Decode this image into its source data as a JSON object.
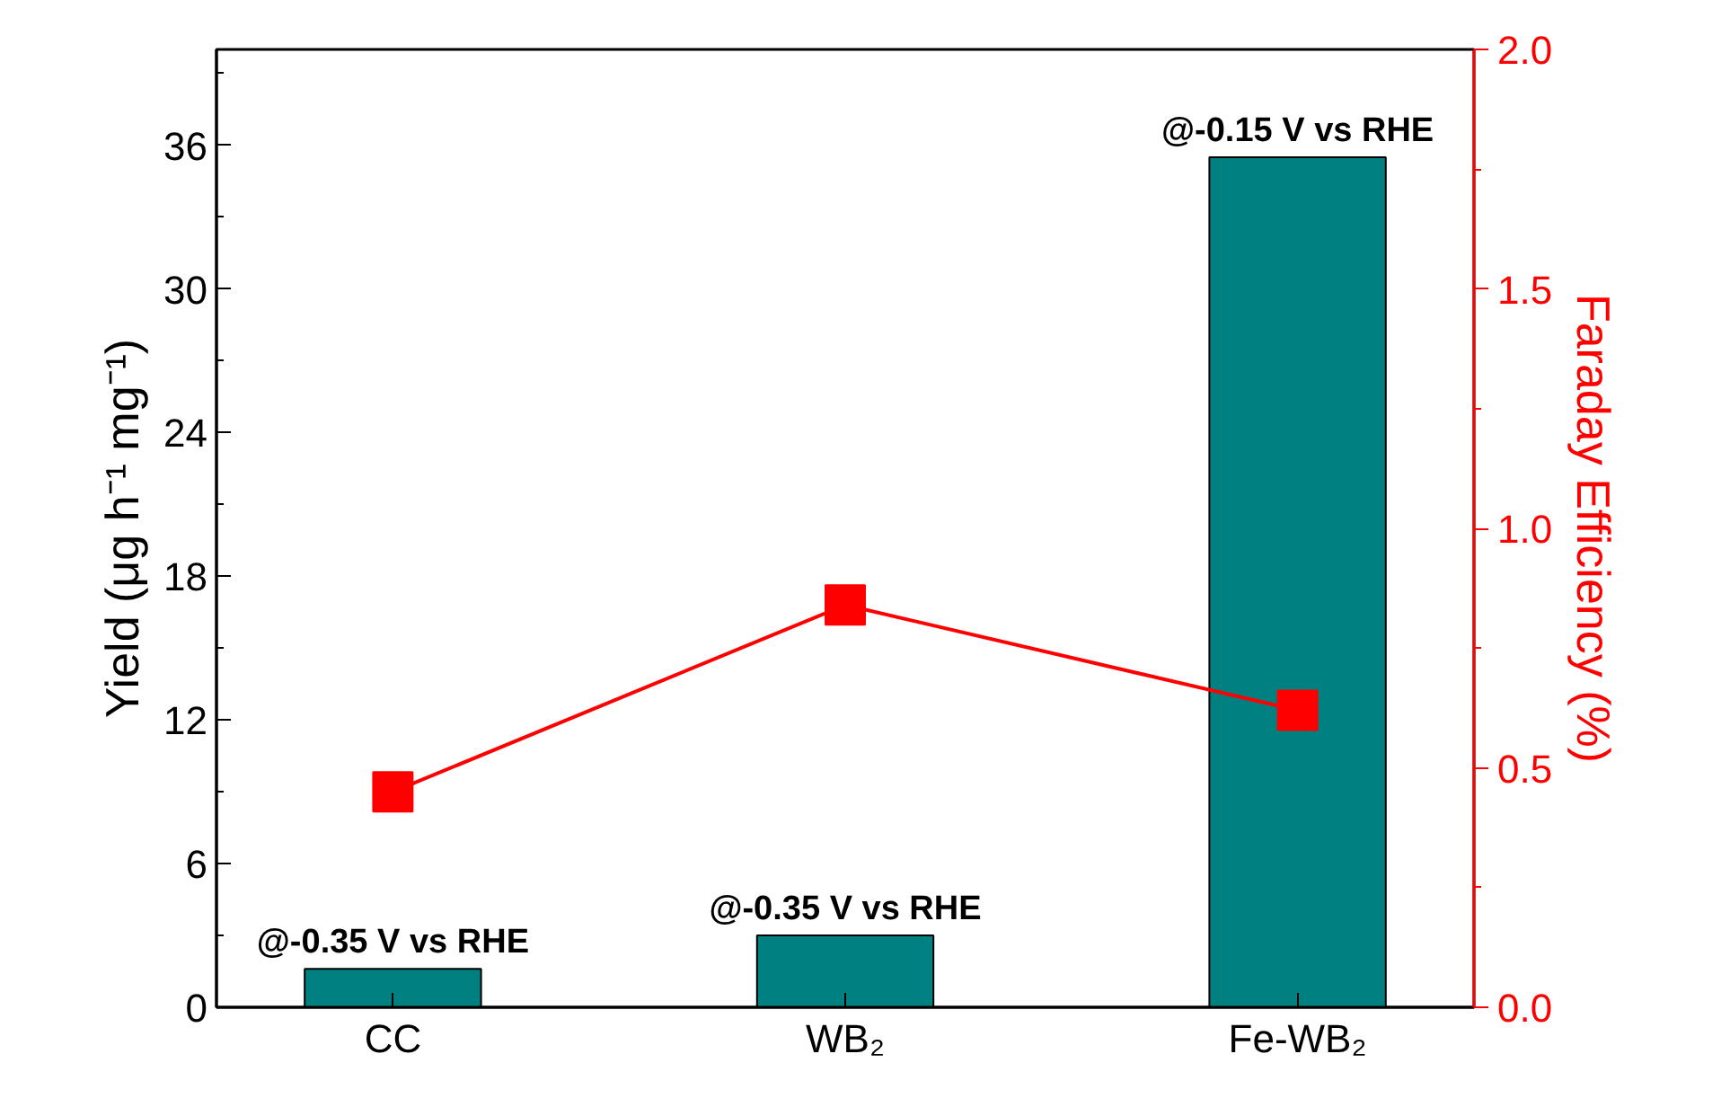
{
  "chart_data": {
    "type": "bar",
    "categories": [
      "CC",
      "WB₂",
      "Fe-WB₂"
    ],
    "ylabel": "Yield (μg h⁻¹ mg⁻¹)",
    "y2label": "Faraday Efficiency (%)",
    "series": [
      {
        "color": "#008080",
        "values": [
          1.6,
          3.0,
          35.5
        ]
      },
      {
        "type": "line",
        "axis": "y2",
        "color": "#ff0000",
        "values": [
          0.45,
          0.84,
          0.62
        ],
        "marker": "square",
        "line_style": "solid"
      }
    ],
    "ylim": [
      0,
      40
    ],
    "yticks": [
      0,
      6,
      12,
      18,
      24,
      30,
      36
    ],
    "y2lim": [
      0,
      2.0
    ],
    "y2ticks": [
      {
        "value": 0,
        "label": "0.0"
      },
      0.5,
      {
        "value": 1,
        "label": "1.0"
      },
      1.5,
      {
        "value": 2,
        "label": "2.0"
      }
    ],
    "annotations": [
      {
        "text": "@-0.35 V vs RHE",
        "x": "CC",
        "y": 1.6
      },
      {
        "text": "@-0.35 V vs RHE",
        "x": "WB₂",
        "y": 3.0
      },
      {
        "text": "@-0.15 V vs RHE",
        "x": "Fe-WB₂",
        "y": 35.5
      }
    ],
    "grid": false
  }
}
